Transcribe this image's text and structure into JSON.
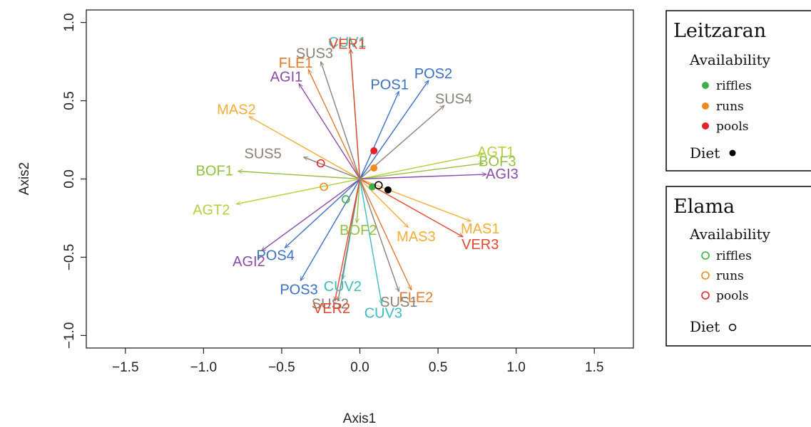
{
  "chart_data": {
    "type": "scatter",
    "xlabel": "Axis1",
    "ylabel": "Axis2",
    "xlim": [
      -1.75,
      1.75
    ],
    "ylim": [
      -1.08,
      1.08
    ],
    "xticks": [
      "−1.5",
      "−1.0",
      "−0.5",
      "0.0",
      "0.5",
      "1.0",
      "1.5"
    ],
    "xtick_values": [
      -1.5,
      -1.0,
      -0.5,
      0.0,
      0.5,
      1.0,
      1.5
    ],
    "yticks": [
      "−1.0",
      "−0.5",
      "0.0",
      "0.5",
      "1.0"
    ],
    "ytick_values": [
      -1.0,
      -0.5,
      0.0,
      0.5,
      1.0
    ],
    "grid": false,
    "vectors": [
      {
        "label": "CUV1",
        "x": -0.06,
        "y": 0.83,
        "lx": -0.08,
        "ly": 0.87,
        "color": "#3cbcbe"
      },
      {
        "label": "VER1",
        "x": -0.06,
        "y": 0.83,
        "lx": -0.08,
        "ly": 0.86,
        "color": "#e0492a"
      },
      {
        "label": "SUS3",
        "x": -0.25,
        "y": 0.75,
        "lx": -0.29,
        "ly": 0.8,
        "color": "#8a8077"
      },
      {
        "label": "FLE1",
        "x": -0.33,
        "y": 0.7,
        "lx": -0.41,
        "ly": 0.74,
        "color": "#e07a2e"
      },
      {
        "label": "AGI1",
        "x": -0.39,
        "y": 0.61,
        "lx": -0.47,
        "ly": 0.65,
        "color": "#8a4ca8"
      },
      {
        "label": "POS1",
        "x": 0.25,
        "y": 0.56,
        "lx": 0.19,
        "ly": 0.6,
        "color": "#3a6fc1"
      },
      {
        "label": "POS2",
        "x": 0.44,
        "y": 0.63,
        "lx": 0.47,
        "ly": 0.67,
        "color": "#3a6fc1"
      },
      {
        "label": "SUS4",
        "x": 0.54,
        "y": 0.47,
        "lx": 0.6,
        "ly": 0.51,
        "color": "#8a8077"
      },
      {
        "label": "MAS2",
        "x": -0.71,
        "y": 0.4,
        "lx": -0.79,
        "ly": 0.44,
        "color": "#f4ad35"
      },
      {
        "label": "SUS5",
        "x": -0.36,
        "y": 0.14,
        "lx": -0.62,
        "ly": 0.16,
        "color": "#8a8077"
      },
      {
        "label": "BOF1",
        "x": -0.78,
        "y": 0.05,
        "lx": -0.93,
        "ly": 0.05,
        "color": "#95c041"
      },
      {
        "label": "AGT1",
        "x": 0.79,
        "y": 0.16,
        "lx": 0.87,
        "ly": 0.17,
        "color": "#b5cf3d"
      },
      {
        "label": "BOF3",
        "x": 0.79,
        "y": 0.1,
        "lx": 0.88,
        "ly": 0.11,
        "color": "#95c041"
      },
      {
        "label": "AGI3",
        "x": 0.81,
        "y": 0.03,
        "lx": 0.91,
        "ly": 0.03,
        "color": "#8a4ca8"
      },
      {
        "label": "AGT2",
        "x": -0.79,
        "y": -0.16,
        "lx": -0.95,
        "ly": -0.2,
        "color": "#b5cf3d"
      },
      {
        "label": "MAS1",
        "x": 0.71,
        "y": -0.27,
        "lx": 0.77,
        "ly": -0.32,
        "color": "#f4ad35"
      },
      {
        "label": "VER3",
        "x": 0.66,
        "y": -0.37,
        "lx": 0.77,
        "ly": -0.42,
        "color": "#e0492a"
      },
      {
        "label": "BOF2",
        "x": -0.02,
        "y": -0.28,
        "lx": -0.01,
        "ly": -0.33,
        "color": "#95c041"
      },
      {
        "label": "MAS3",
        "x": 0.31,
        "y": -0.31,
        "lx": 0.36,
        "ly": -0.37,
        "color": "#f4ad35"
      },
      {
        "label": "POS4",
        "x": -0.48,
        "y": -0.44,
        "lx": -0.54,
        "ly": -0.49,
        "color": "#3a6fc1"
      },
      {
        "label": "AGI2",
        "x": -0.63,
        "y": -0.46,
        "lx": -0.71,
        "ly": -0.53,
        "color": "#8a4ca8"
      },
      {
        "label": "POS3",
        "x": -0.38,
        "y": -0.65,
        "lx": -0.39,
        "ly": -0.71,
        "color": "#3a6fc1"
      },
      {
        "label": "CUV2",
        "x": -0.11,
        "y": -0.64,
        "lx": -0.11,
        "ly": -0.69,
        "color": "#3cbcbe"
      },
      {
        "label": "SUS2",
        "x": -0.14,
        "y": -0.78,
        "lx": -0.19,
        "ly": -0.8,
        "color": "#8a8077"
      },
      {
        "label": "VER2",
        "x": -0.16,
        "y": -0.78,
        "lx": -0.18,
        "ly": -0.83,
        "color": "#e0492a"
      },
      {
        "label": "CUV3",
        "x": 0.14,
        "y": -0.8,
        "lx": 0.15,
        "ly": -0.86,
        "color": "#3cbcbe"
      },
      {
        "label": "FLE2",
        "x": 0.33,
        "y": -0.71,
        "lx": 0.36,
        "ly": -0.76,
        "color": "#e07a2e"
      },
      {
        "label": "SUS1",
        "x": 0.25,
        "y": -0.72,
        "lx": 0.25,
        "ly": -0.79,
        "color": "#8a8077"
      }
    ],
    "points": [
      {
        "group": "Leitzaran",
        "habitat": "riffles",
        "x": 0.08,
        "y": -0.05,
        "filled": true,
        "color": "#3cb04a"
      },
      {
        "group": "Leitzaran",
        "habitat": "runs",
        "x": 0.09,
        "y": 0.07,
        "filled": true,
        "color": "#ef8a22"
      },
      {
        "group": "Leitzaran",
        "habitat": "pools",
        "x": 0.09,
        "y": 0.18,
        "filled": true,
        "color": "#e02428"
      },
      {
        "group": "Leitzaran",
        "habitat": "Diet",
        "x": 0.18,
        "y": -0.07,
        "filled": true,
        "color": "#000000"
      },
      {
        "group": "Elama",
        "habitat": "riffles",
        "x": -0.09,
        "y": -0.13,
        "filled": false,
        "color": "#3cb04a"
      },
      {
        "group": "Elama",
        "habitat": "runs",
        "x": -0.23,
        "y": -0.05,
        "filled": false,
        "color": "#ef8a22"
      },
      {
        "group": "Elama",
        "habitat": "pools",
        "x": -0.25,
        "y": 0.1,
        "filled": false,
        "color": "#e02428"
      },
      {
        "group": "Elama",
        "habitat": "Diet",
        "x": 0.12,
        "y": -0.04,
        "filled": false,
        "color": "#000000"
      }
    ]
  },
  "legend": [
    {
      "title": "Leitzaran",
      "subtitle": "Availability",
      "items": [
        {
          "label": "riffles",
          "color": "#3cb04a",
          "filled": true
        },
        {
          "label": "runs",
          "color": "#ef8a22",
          "filled": true
        },
        {
          "label": "pools",
          "color": "#e02428",
          "filled": true
        }
      ],
      "diet_label": "Diet",
      "diet_filled": true
    },
    {
      "title": "Elama",
      "subtitle": "Availability",
      "items": [
        {
          "label": "riffles",
          "color": "#3cb04a",
          "filled": false
        },
        {
          "label": "runs",
          "color": "#ef8a22",
          "filled": false
        },
        {
          "label": "pools",
          "color": "#e02428",
          "filled": false
        }
      ],
      "diet_label": "Diet",
      "diet_filled": false
    }
  ]
}
